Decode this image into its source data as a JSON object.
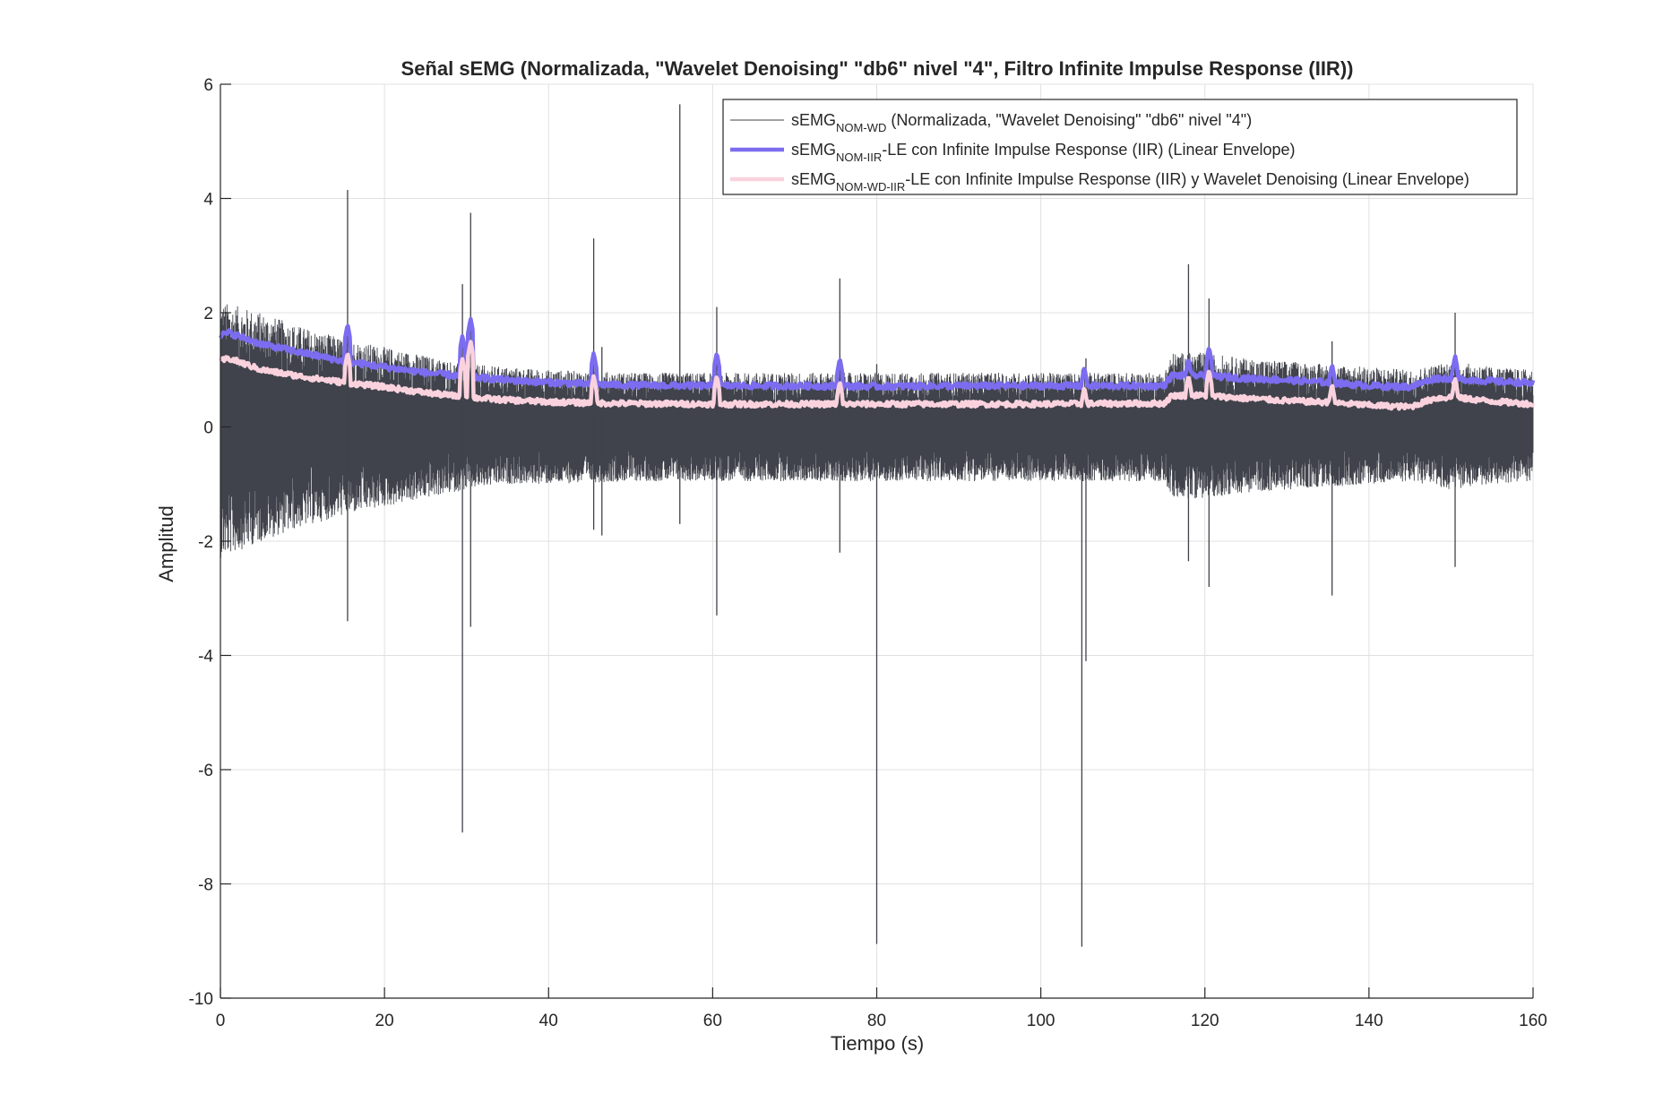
{
  "chart_data": {
    "type": "line",
    "title": "Señal sEMG (Normalizada, \"Wavelet Denoising\" \"db6\" nivel \"4\", Filtro Infinite Impulse Response (IIR))",
    "xlabel": "Tiempo (s)",
    "ylabel": "Amplitud",
    "xlim": [
      0,
      160
    ],
    "ylim": [
      -10,
      6
    ],
    "xticks": [
      0,
      20,
      40,
      60,
      80,
      100,
      120,
      140,
      160
    ],
    "yticks": [
      -10,
      -8,
      -6,
      -4,
      -2,
      0,
      2,
      4,
      6
    ],
    "grid": true,
    "legend_position": "top-right",
    "colors": {
      "raw": "#40434b",
      "iir": "#7b6cf0",
      "wd_iir": "#fad2de",
      "axis": "#262626",
      "grid": "#e0e0e0"
    },
    "series": [
      {
        "key": "raw",
        "legend_prefix": "sEMG",
        "legend_sub": "NOM-WD",
        "legend_suffix": " (Normalizada, \"Wavelet Denoising\" \"db6\" nivel \"4\")",
        "envelope_upper": {
          "x": [
            0,
            5,
            10,
            15,
            20,
            25,
            30,
            35,
            40,
            50,
            60,
            70,
            80,
            90,
            100,
            110,
            115,
            116,
            120,
            125,
            130,
            135,
            140,
            145,
            150,
            155,
            160
          ],
          "y": [
            2.2,
            2.0,
            1.75,
            1.55,
            1.4,
            1.25,
            1.1,
            1.05,
            1.0,
            0.95,
            0.95,
            0.95,
            0.95,
            0.95,
            0.95,
            0.95,
            0.95,
            1.3,
            1.3,
            1.2,
            1.15,
            1.1,
            1.05,
            1.0,
            1.15,
            1.05,
            1.0
          ]
        },
        "envelope_lower": {
          "x": [
            0,
            5,
            10,
            15,
            20,
            25,
            30,
            35,
            40,
            50,
            60,
            70,
            80,
            90,
            100,
            110,
            115,
            116,
            120,
            125,
            130,
            135,
            140,
            145,
            150,
            155,
            160
          ],
          "y": [
            -2.3,
            -2.0,
            -1.75,
            -1.55,
            -1.4,
            -1.25,
            -1.1,
            -1.0,
            -1.0,
            -0.95,
            -0.95,
            -0.95,
            -0.95,
            -0.95,
            -0.95,
            -0.95,
            -0.95,
            -1.25,
            -1.25,
            -1.15,
            -1.1,
            -1.05,
            -1.0,
            -0.95,
            -1.1,
            -1.0,
            -0.95
          ]
        },
        "spikes": [
          {
            "x": 15.5,
            "high": 4.15,
            "low": -3.4
          },
          {
            "x": 29.5,
            "high": 2.5,
            "low": -7.1
          },
          {
            "x": 30.5,
            "high": 3.75,
            "low": -3.5
          },
          {
            "x": 45.5,
            "high": 3.3,
            "low": -1.8
          },
          {
            "x": 46.5,
            "high": 1.4,
            "low": -1.9
          },
          {
            "x": 56.0,
            "high": 5.65,
            "low": -1.7
          },
          {
            "x": 60.5,
            "high": 2.1,
            "low": -3.3
          },
          {
            "x": 75.5,
            "high": 2.6,
            "low": -2.2
          },
          {
            "x": 80.0,
            "high": 1.1,
            "low": -9.05
          },
          {
            "x": 105.0,
            "high": 1.0,
            "low": -9.1
          },
          {
            "x": 105.5,
            "high": 1.2,
            "low": -4.1
          },
          {
            "x": 118.0,
            "high": 2.85,
            "low": -2.35
          },
          {
            "x": 120.5,
            "high": 2.25,
            "low": -2.8
          },
          {
            "x": 135.5,
            "high": 1.5,
            "low": -2.95
          },
          {
            "x": 150.5,
            "high": 2.0,
            "low": -2.45
          }
        ]
      },
      {
        "key": "iir",
        "legend_prefix": "sEMG",
        "legend_sub": "NOM-IIR",
        "legend_suffix": "-LE con Infinite Impulse Response (IIR) (Linear Envelope)",
        "x": [
          0,
          1,
          5,
          10,
          15,
          20,
          25,
          30,
          35,
          40,
          45,
          50,
          60,
          70,
          80,
          90,
          100,
          110,
          115,
          116,
          120,
          125,
          130,
          135,
          140,
          145,
          148,
          150,
          155,
          160
        ],
        "y": [
          1.6,
          1.65,
          1.45,
          1.3,
          1.15,
          1.05,
          0.95,
          0.88,
          0.82,
          0.78,
          0.75,
          0.73,
          0.72,
          0.72,
          0.71,
          0.72,
          0.72,
          0.72,
          0.72,
          0.9,
          0.9,
          0.85,
          0.82,
          0.78,
          0.72,
          0.7,
          0.85,
          0.85,
          0.8,
          0.77
        ],
        "peaks": [
          {
            "x": 15.5,
            "y": 1.8
          },
          {
            "x": 29.5,
            "y": 1.6
          },
          {
            "x": 30.5,
            "y": 1.9
          },
          {
            "x": 45.5,
            "y": 1.3
          },
          {
            "x": 60.5,
            "y": 1.3
          },
          {
            "x": 75.5,
            "y": 1.2
          },
          {
            "x": 105.3,
            "y": 1.05
          },
          {
            "x": 118.0,
            "y": 1.2
          },
          {
            "x": 120.5,
            "y": 1.4
          },
          {
            "x": 135.5,
            "y": 1.1
          },
          {
            "x": 150.5,
            "y": 1.25
          }
        ]
      },
      {
        "key": "wd_iir",
        "legend_prefix": "sEMG",
        "legend_sub": "NOM-WD-IIR",
        "legend_suffix": "-LE con Infinite Impulse Response (IIR) y Wavelet Denoising (Linear Envelope)",
        "x": [
          0,
          1,
          5,
          10,
          15,
          20,
          25,
          30,
          35,
          40,
          45,
          50,
          60,
          70,
          80,
          90,
          100,
          110,
          115,
          116,
          120,
          125,
          130,
          135,
          140,
          145,
          148,
          150,
          155,
          160
        ],
        "y": [
          1.15,
          1.2,
          1.0,
          0.88,
          0.78,
          0.7,
          0.6,
          0.52,
          0.47,
          0.44,
          0.42,
          0.41,
          0.4,
          0.4,
          0.4,
          0.4,
          0.4,
          0.41,
          0.41,
          0.55,
          0.55,
          0.5,
          0.46,
          0.43,
          0.38,
          0.35,
          0.5,
          0.52,
          0.45,
          0.4
        ],
        "peaks": [
          {
            "x": 15.5,
            "y": 1.3
          },
          {
            "x": 29.5,
            "y": 1.2
          },
          {
            "x": 30.5,
            "y": 1.5
          },
          {
            "x": 45.5,
            "y": 0.9
          },
          {
            "x": 60.5,
            "y": 0.9
          },
          {
            "x": 75.5,
            "y": 0.8
          },
          {
            "x": 105.3,
            "y": 0.7
          },
          {
            "x": 118.0,
            "y": 0.9
          },
          {
            "x": 120.5,
            "y": 1.0
          },
          {
            "x": 135.5,
            "y": 0.75
          },
          {
            "x": 150.5,
            "y": 0.85
          }
        ]
      }
    ]
  }
}
